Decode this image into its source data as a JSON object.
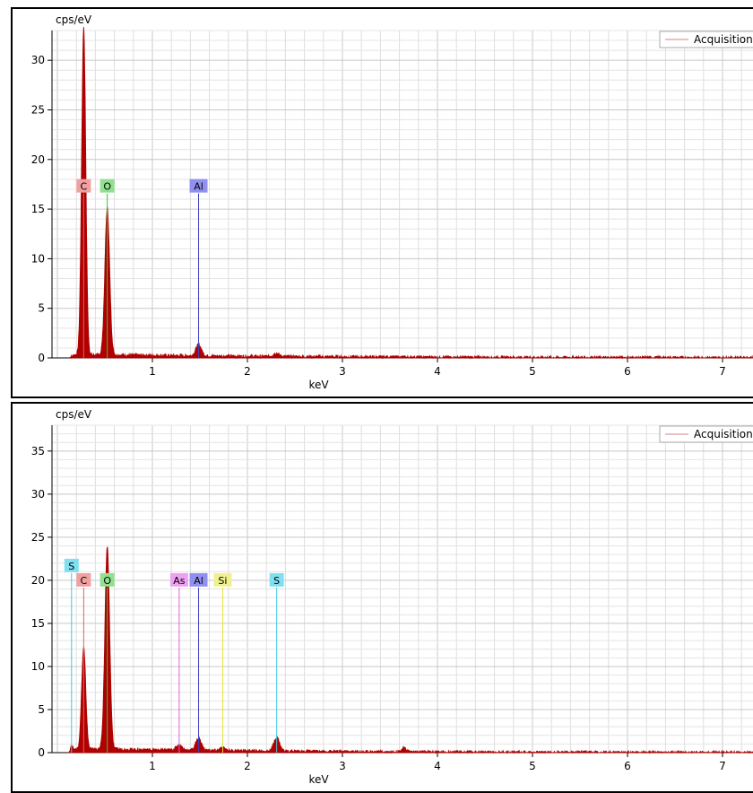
{
  "chart_data": [
    {
      "type": "line",
      "ylabel": "cps/eV",
      "xlabel": "keV",
      "xlim": [
        0,
        8
      ],
      "ylim": [
        0,
        33
      ],
      "x_ticks": [
        1,
        2,
        3,
        4,
        5,
        6,
        7
      ],
      "y_ticks": [
        0,
        5,
        10,
        15,
        20,
        25,
        30
      ],
      "grid": true,
      "legend": {
        "position": "top-right",
        "entries": [
          {
            "label": "Acquisition",
            "color": "#d98080"
          }
        ]
      },
      "series_color": "#b00000",
      "series": [
        {
          "name": "Acquisition",
          "peaks": [
            {
              "x": 0.277,
              "y": 33.0
            },
            {
              "x": 0.525,
              "y": 14.8
            },
            {
              "x": 1.486,
              "y": 1.1
            },
            {
              "x": 2.3,
              "y": 0.35
            }
          ],
          "background": 0.3
        }
      ],
      "element_markers": [
        {
          "label": "C",
          "x": 0.277,
          "bg": "#f0a0a0",
          "line": "#e06060"
        },
        {
          "label": "O",
          "x": 0.525,
          "bg": "#90e090",
          "line": "#40c040"
        },
        {
          "label": "Al",
          "x": 1.486,
          "bg": "#9090f0",
          "line": "#4040c0"
        }
      ]
    },
    {
      "type": "line",
      "ylabel": "cps/eV",
      "xlabel": "keV",
      "xlim": [
        0,
        8
      ],
      "ylim": [
        0,
        38
      ],
      "x_ticks": [
        1,
        2,
        3,
        4,
        5,
        6,
        7
      ],
      "y_ticks": [
        0,
        5,
        10,
        15,
        20,
        25,
        30,
        35
      ],
      "grid": true,
      "legend": {
        "position": "top-right",
        "entries": [
          {
            "label": "Acquisition",
            "color": "#d98080"
          }
        ]
      },
      "series_color": "#b00000",
      "series": [
        {
          "name": "Acquisition",
          "peaks": [
            {
              "x": 0.149,
              "y": 0.6
            },
            {
              "x": 0.277,
              "y": 11.8
            },
            {
              "x": 0.525,
              "y": 23.5
            },
            {
              "x": 1.28,
              "y": 0.6
            },
            {
              "x": 1.486,
              "y": 1.4
            },
            {
              "x": 1.74,
              "y": 0.3
            },
            {
              "x": 2.308,
              "y": 1.6
            },
            {
              "x": 3.65,
              "y": 0.4
            }
          ],
          "background": 0.4
        }
      ],
      "element_markers": [
        {
          "label": "S",
          "x": 0.149,
          "bg": "#80e0f0",
          "line": "#40c8e0"
        },
        {
          "label": "C",
          "x": 0.277,
          "bg": "#f0a0a0",
          "line": "#e06060"
        },
        {
          "label": "O",
          "x": 0.525,
          "bg": "#90e090",
          "line": "#40c040"
        },
        {
          "label": "As",
          "x": 1.282,
          "bg": "#f0a0f0",
          "line": "#e060e0"
        },
        {
          "label": "Al",
          "x": 1.486,
          "bg": "#9090f0",
          "line": "#4040c0"
        },
        {
          "label": "Si",
          "x": 1.74,
          "bg": "#f0f090",
          "line": "#e0e040"
        },
        {
          "label": "S",
          "x": 2.308,
          "bg": "#80e0f0",
          "line": "#40c8e0"
        }
      ]
    }
  ]
}
